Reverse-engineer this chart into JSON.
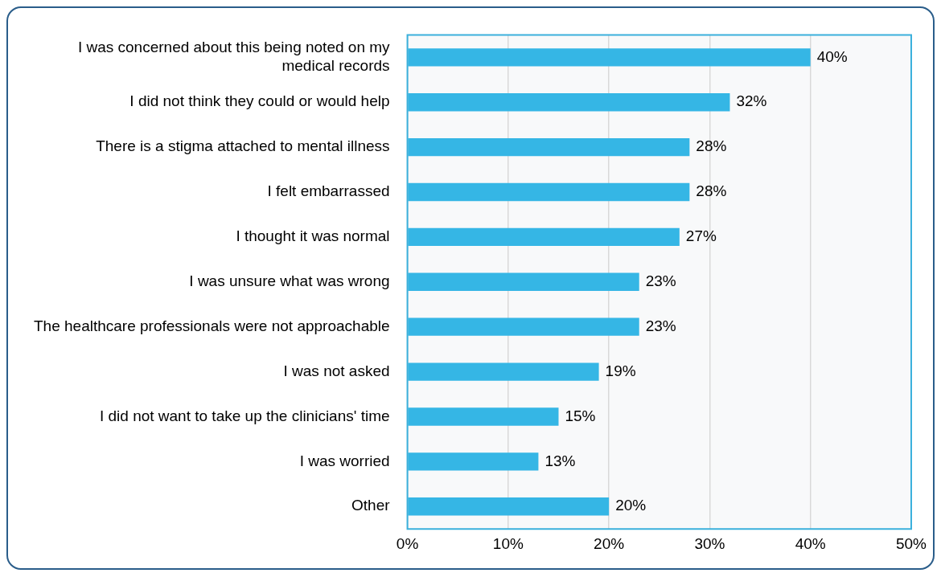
{
  "chart_data": {
    "type": "bar",
    "orientation": "horizontal",
    "categories": [
      "I was concerned about this being noted on my medical records",
      "I did not think they could or would help",
      "There is a stigma attached to mental illness",
      "I felt embarrassed",
      "I thought it was normal",
      "I was unsure what was wrong",
      "The healthcare professionals were not approachable",
      "I was not asked",
      "I did not want to take up the clinicians' time",
      "I was worried",
      "Other"
    ],
    "values": [
      40,
      32,
      28,
      28,
      27,
      23,
      23,
      19,
      15,
      13,
      20
    ],
    "color": "#35b6e5",
    "xlim": [
      0,
      50
    ],
    "xticks": [
      {
        "value": 0,
        "label": "0%"
      },
      {
        "value": 10,
        "label": "10%"
      },
      {
        "value": 20,
        "label": "20%"
      },
      {
        "value": 30,
        "label": "30%"
      },
      {
        "value": 40,
        "label": "40%"
      },
      {
        "value": 50,
        "label": "50%"
      }
    ],
    "value_labels": [
      "40%",
      "32%",
      "28%",
      "28%",
      "27%",
      "23%",
      "23%",
      "19%",
      "15%",
      "13%",
      "20%"
    ],
    "grid": "x",
    "legend": false
  }
}
